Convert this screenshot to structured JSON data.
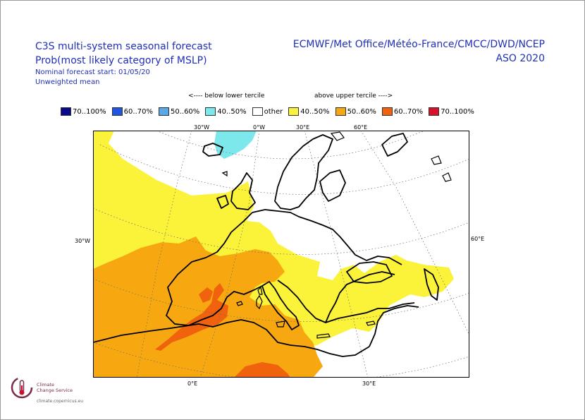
{
  "header": {
    "title_line1": "C3S multi-system seasonal forecast",
    "title_line2": "Prob(most likely category of MSLP)",
    "nominal_start": "Nominal forecast start: 01/05/20",
    "weighting": "Unweighted mean",
    "centres": "ECMWF/Met Office/Météo-France/CMCC/DWD/NCEP",
    "season": "ASO 2020"
  },
  "legend": {
    "below_label": "<---- below lower tercile",
    "above_label": "above upper tercile ---->",
    "items": [
      {
        "label": "70..100%",
        "color": "#0a0a8c"
      },
      {
        "label": "60..70%",
        "color": "#1f55e0"
      },
      {
        "label": "50..60%",
        "color": "#58a8ea"
      },
      {
        "label": "40..50%",
        "color": "#7de8ec"
      },
      {
        "label": "other",
        "color": "#ffffff"
      },
      {
        "label": "40..50%",
        "color": "#fbf23a"
      },
      {
        "label": "50..60%",
        "color": "#f7a810"
      },
      {
        "label": "60..70%",
        "color": "#f0620e"
      },
      {
        "label": "70..100%",
        "color": "#d8102a"
      }
    ]
  },
  "axes": {
    "top": [
      "30°W",
      "0°W",
      "30°E",
      "60°E"
    ],
    "bottom": [
      "0°E",
      "30°E"
    ],
    "left": "30°W",
    "right": "60°E"
  },
  "logo": {
    "name_line1": "Climate",
    "name_line2": "Change Service",
    "url": "climate.copernicus.eu"
  }
}
